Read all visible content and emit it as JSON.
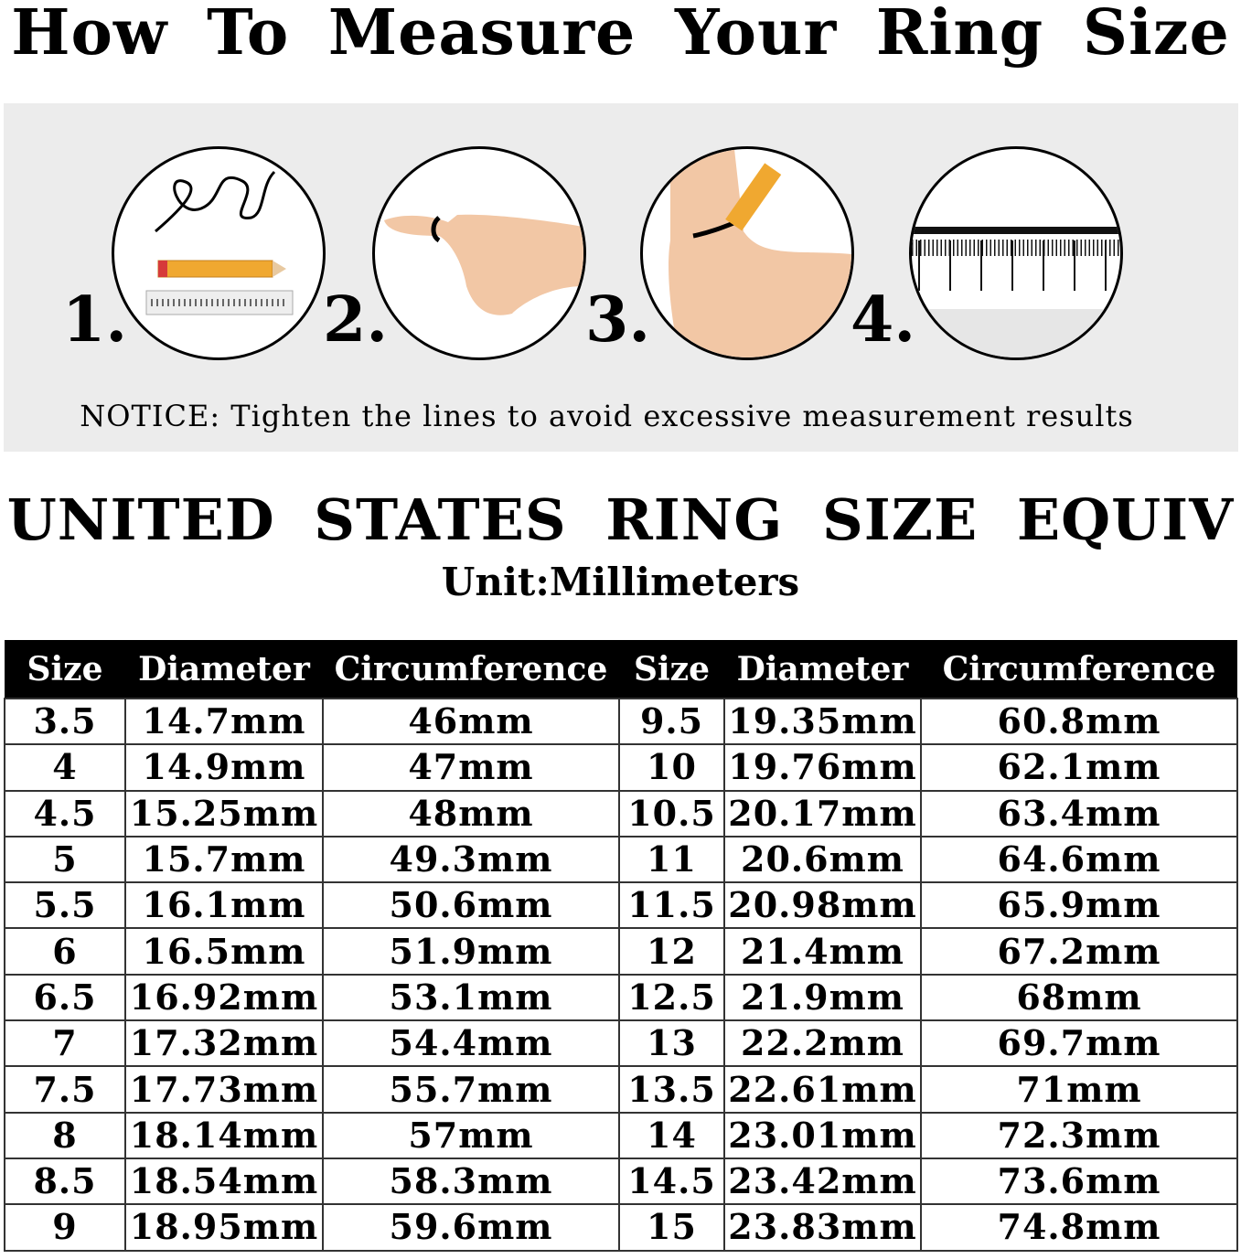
{
  "title": "How To Measure Your Ring Size",
  "steps": [
    {
      "number": "1.",
      "icon": "string-pencil-ruler-icon"
    },
    {
      "number": "2.",
      "icon": "string-around-finger-icon"
    },
    {
      "number": "3.",
      "icon": "mark-string-pencil-icon"
    },
    {
      "number": "4.",
      "icon": "measure-ruler-icon"
    }
  ],
  "notice": "NOTICE: Tighten the lines to avoid excessive measurement results",
  "heading": "UNITED STATES RING SIZE EQUIV",
  "unit": "Unit:Millimeters",
  "table": {
    "headers": [
      "Size",
      "Diameter",
      "Circumference",
      "Size",
      "Diameter",
      "Circumference"
    ],
    "rows": [
      [
        "3.5",
        "14.7mm",
        "46mm",
        "9.5",
        "19.35mm",
        "60.8mm"
      ],
      [
        "4",
        "14.9mm",
        "47mm",
        "10",
        "19.76mm",
        "62.1mm"
      ],
      [
        "4.5",
        "15.25mm",
        "48mm",
        "10.5",
        "20.17mm",
        "63.4mm"
      ],
      [
        "5",
        "15.7mm",
        "49.3mm",
        "11",
        "20.6mm",
        "64.6mm"
      ],
      [
        "5.5",
        "16.1mm",
        "50.6mm",
        "11.5",
        "20.98mm",
        "65.9mm"
      ],
      [
        "6",
        "16.5mm",
        "51.9mm",
        "12",
        "21.4mm",
        "67.2mm"
      ],
      [
        "6.5",
        "16.92mm",
        "53.1mm",
        "12.5",
        "21.9mm",
        "68mm"
      ],
      [
        "7",
        "17.32mm",
        "54.4mm",
        "13",
        "22.2mm",
        "69.7mm"
      ],
      [
        "7.5",
        "17.73mm",
        "55.7mm",
        "13.5",
        "22.61mm",
        "71mm"
      ],
      [
        "8",
        "18.14mm",
        "57mm",
        "14",
        "23.01mm",
        "72.3mm"
      ],
      [
        "8.5",
        "18.54mm",
        "58.3mm",
        "14.5",
        "23.42mm",
        "73.6mm"
      ],
      [
        "9",
        "18.95mm",
        "59.6mm",
        "15",
        "23.83mm",
        "74.8mm"
      ]
    ]
  },
  "colors": {
    "panel": "#ececec",
    "header_bg": "#000000",
    "skin": "#f2c7a5",
    "pencil": "#f0a830"
  }
}
